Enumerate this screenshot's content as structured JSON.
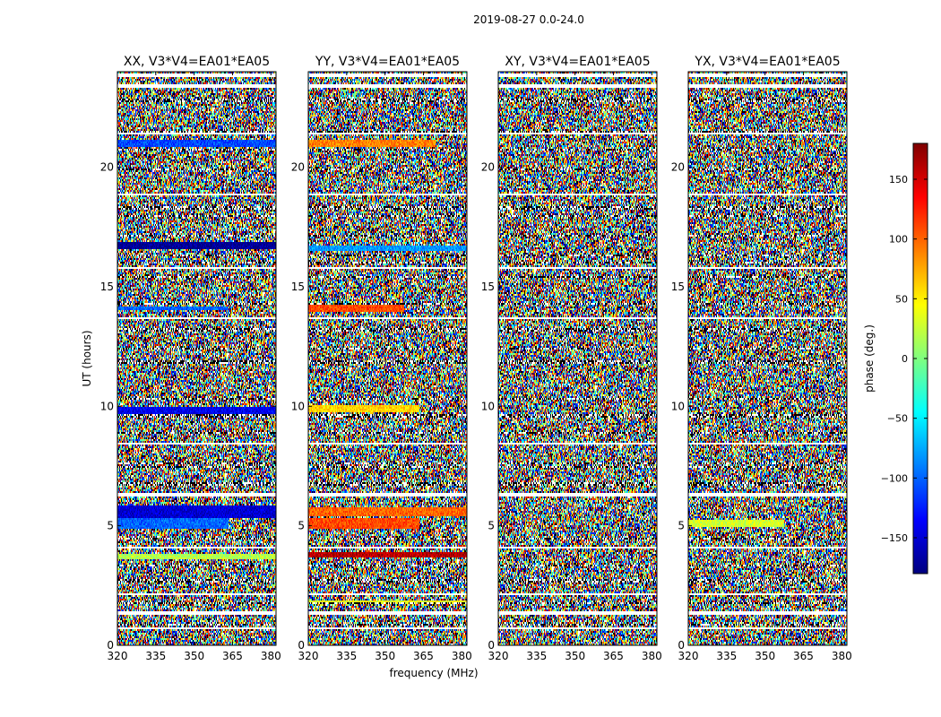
{
  "figure": {
    "suptitle": "2019-08-27 0.0-24.0"
  },
  "chart_data": {
    "type": "heatmap",
    "title": "2019-08-27 0.0-24.0",
    "xlabel": "frequency (MHz)",
    "ylabel": "UT (hours)",
    "xlim": [
      320,
      382
    ],
    "ylim": [
      0,
      24
    ],
    "xticks": [
      "320",
      "335",
      "350",
      "365",
      "380"
    ],
    "yticks": [
      "0",
      "5",
      "10",
      "15",
      "20"
    ],
    "colormap": "jet",
    "colorbar": {
      "label": "phase (deg.)",
      "range": [
        -180,
        180
      ],
      "ticks": [
        "−150",
        "−100",
        "−50",
        "0",
        "50",
        "100",
        "150"
      ],
      "tick_values": [
        -150,
        -100,
        -50,
        0,
        50,
        100,
        150
      ]
    },
    "panels": [
      {
        "title": "XX, V3*V4=EA01*EA05",
        "features": [
          {
            "ut": 21.0,
            "phase": -110,
            "width": 0.15,
            "extent": 1.0
          },
          {
            "ut": 16.7,
            "phase": -175,
            "width": 0.15,
            "extent": 1.0
          },
          {
            "ut": 14.1,
            "phase": -100,
            "width": 0.1,
            "extent": 0.7
          },
          {
            "ut": 9.8,
            "phase": -140,
            "width": 0.15,
            "extent": 1.0
          },
          {
            "ut": 5.6,
            "phase": -150,
            "width": 0.25,
            "extent": 1.0
          },
          {
            "ut": 5.1,
            "phase": -100,
            "width": 0.25,
            "extent": 0.7
          },
          {
            "ut": 3.7,
            "phase": 20,
            "width": 0.1,
            "extent": 1.0
          }
        ]
      },
      {
        "title": "YY, V3*V4=EA01*EA05",
        "features": [
          {
            "ut": 21.0,
            "phase": 90,
            "width": 0.15,
            "extent": 0.8
          },
          {
            "ut": 16.6,
            "phase": -80,
            "width": 0.12,
            "extent": 1.0
          },
          {
            "ut": 14.1,
            "phase": 110,
            "width": 0.12,
            "extent": 0.6
          },
          {
            "ut": 9.9,
            "phase": 60,
            "width": 0.12,
            "extent": 0.7
          },
          {
            "ut": 5.6,
            "phase": 100,
            "width": 0.2,
            "extent": 1.0
          },
          {
            "ut": 5.1,
            "phase": 110,
            "width": 0.25,
            "extent": 0.7
          },
          {
            "ut": 3.8,
            "phase": 160,
            "width": 0.12,
            "extent": 1.0
          },
          {
            "ut": 1.8,
            "phase": 40,
            "width": 0.1,
            "extent": 1.0
          }
        ]
      },
      {
        "title": "XY, V3*V4=EA01*EA05",
        "features": []
      },
      {
        "title": "YX, V3*V4=EA01*EA05",
        "features": [
          {
            "ut": 5.1,
            "phase": 30,
            "width": 0.15,
            "extent": 0.6
          }
        ]
      }
    ],
    "flagged_ut": [
      0.85,
      1.75,
      2.7,
      3.35,
      4.45,
      6.75,
      7.45,
      7.6,
      8.9,
      9.6,
      10.3,
      11.85,
      12.4,
      13.2,
      14.3,
      15.4,
      16.0,
      16.3,
      17.15,
      17.95,
      18.3,
      19.9,
      20.75,
      21.5,
      22.8
    ],
    "data_gaps_ut": [
      0.7,
      1.35,
      2.15,
      4.1,
      6.3,
      8.45,
      13.7,
      15.8,
      18.85,
      21.4,
      23.4,
      23.85
    ]
  }
}
